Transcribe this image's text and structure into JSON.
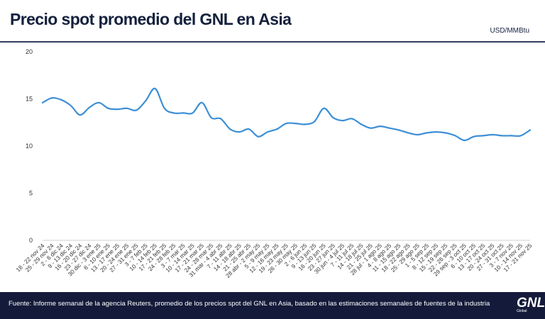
{
  "header": {
    "title": "Precio spot promedio del GNL en Asia",
    "unit": "USD/MMBtu"
  },
  "footer": {
    "source": "Fuente: Informe semanal de la agencia Reuters, promedio de los precios spot del GNL en Asia, basado en las estimaciones semanales de fuentes de la industria",
    "logo_text": "GNL",
    "logo_sub": "Global"
  },
  "colors": {
    "line": "#3d8fd6",
    "navy": "#141b3a"
  },
  "chart_data": {
    "type": "line",
    "title": "Precio spot promedio del GNL en Asia",
    "ylabel": "USD/MMBtu",
    "ylim": [
      0,
      20
    ],
    "yticks": [
      0,
      5,
      10,
      15,
      20
    ],
    "grid": false,
    "categories": [
      "18 - 22 nov 24",
      "25 - 29 nov 24",
      "2 - 6 dic 24",
      "9 - 13 dic 24",
      "16 - 20 dic 24",
      "23 - 27 dic 24",
      "30 dic - 3 ene 25",
      "6 - 10 ene 25",
      "13 - 17 ene 25",
      "20 - 24 ene 25",
      "27 - 31 ene 25",
      "3 - 7 feb 25",
      "10 - 14 feb 25",
      "17 - 21 feb 25",
      "24 - 28 feb 25",
      "3 - 7 mar 25",
      "10 - 14 mar 25",
      "17 - 21 mar 25",
      "24 - 28 mar 25",
      "31 mar - 4 abr 25",
      "7 - 11 abr 25",
      "14 - 18 abr 25",
      "21 - 25 abr 25",
      "28 abr - 2 may 25",
      "5 - 9 may 25",
      "12 - 16 may 25",
      "19 - 23 may 25",
      "26 - 30 may 25",
      "2 - 6 jun 25",
      "9 - 13 jun 25",
      "16 - 20 jun 25",
      "23 - 27 jun 25",
      "30 jun - 4 jul 25",
      "7 - 11 jul 25",
      "14 - 18 jul 25",
      "21 - 25 jul 25",
      "28 jul - 1 ago 25",
      "4 - 8 ago 25",
      "11 - 15 ago 25",
      "18 - 22 ago 25",
      "25 - 29 ago 25",
      "1 - 5 sep 25",
      "8 - 12 sep 25",
      "15 - 19 sep 25",
      "22 - 26 sep 25",
      "29 sep - 3 oct 25",
      "6 - 10 oct 25",
      "13 - 17 oct 25",
      "20 - 24 oct 25",
      "27 - 31 oct 25",
      "3 - 7 nov 25",
      "10 - 14 nov 25",
      "17 - 21 nov 25"
    ],
    "series": [
      {
        "values": [
          14.6,
          15.1,
          14.9,
          14.3,
          13.3,
          14.1,
          14.6,
          14.0,
          13.9,
          14.0,
          13.8,
          14.8,
          16.1,
          14.0,
          13.5,
          13.5,
          13.5,
          14.6,
          13.0,
          12.9,
          11.8,
          11.5,
          11.8,
          11.0,
          11.5,
          11.8,
          12.4,
          12.4,
          12.3,
          12.6,
          14.0,
          13.0,
          12.7,
          12.9,
          12.3,
          11.9,
          12.1,
          11.9,
          11.7,
          11.4,
          11.2,
          11.4,
          11.5,
          11.4,
          11.1,
          10.6,
          11.0,
          11.1,
          11.2,
          11.1,
          11.1,
          11.1,
          11.7
        ]
      }
    ]
  }
}
